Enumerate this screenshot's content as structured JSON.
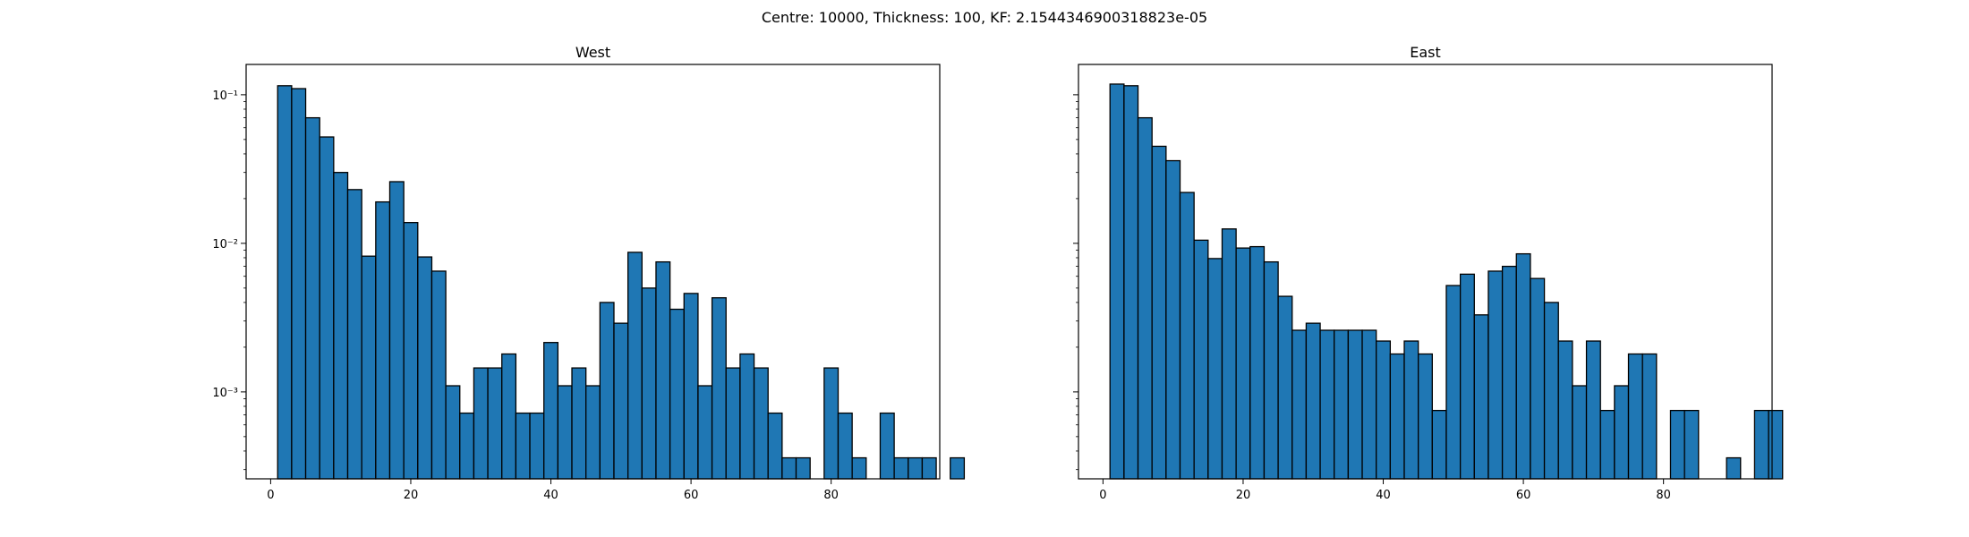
{
  "suptitle": "Centre: 10000, Thickness: 100, KF: 2.1544346900318823e-05",
  "chart_data": [
    {
      "type": "bar",
      "title": "West",
      "xlabel": "",
      "ylabel": "",
      "yscale": "log",
      "xlim": [
        -3.5,
        95.5
      ],
      "ylim": [
        0.00026,
        0.16
      ],
      "xticks": [
        0,
        20,
        40,
        60,
        80
      ],
      "yticks": [
        {
          "value": 0.001,
          "label": "10⁻³"
        },
        {
          "value": 0.01,
          "label": "10⁻²"
        },
        {
          "value": 0.1,
          "label": "10⁻¹"
        }
      ],
      "grid": false,
      "bin_width": 2,
      "bin_start": 1,
      "bar_color": "#1f77b4",
      "edge_color": "#000000",
      "values": [
        0.115,
        0.11,
        0.07,
        0.052,
        0.03,
        0.023,
        0.0082,
        0.019,
        0.026,
        0.0138,
        0.0081,
        0.0065,
        0.0011,
        0.00072,
        0.00145,
        0.00145,
        0.0018,
        0.00072,
        0.00072,
        0.00215,
        0.0011,
        0.00145,
        0.0011,
        0.004,
        0.0029,
        0.0087,
        0.005,
        0.0075,
        0.0036,
        0.0046,
        0.0011,
        0.0043,
        0.00145,
        0.0018,
        0.00145,
        0.00072,
        0.00036,
        0.00036,
        0,
        0.00145,
        0.00072,
        0.00036,
        0,
        0.00072,
        0.00036,
        0.00036,
        0.00036,
        0,
        0.00036
      ]
    },
    {
      "type": "bar",
      "title": "East",
      "xlabel": "",
      "ylabel": "",
      "yscale": "log",
      "xlim": [
        -3.5,
        95.5
      ],
      "ylim": [
        0.00026,
        0.16
      ],
      "xticks": [
        0,
        20,
        40,
        60,
        80
      ],
      "yticks": [
        {
          "value": 0.001,
          "label": ""
        },
        {
          "value": 0.01,
          "label": ""
        },
        {
          "value": 0.1,
          "label": ""
        }
      ],
      "grid": false,
      "bin_width": 2,
      "bin_start": 1,
      "bar_color": "#1f77b4",
      "edge_color": "#000000",
      "values": [
        0.118,
        0.115,
        0.07,
        0.045,
        0.036,
        0.022,
        0.0105,
        0.0079,
        0.0125,
        0.0093,
        0.0095,
        0.0075,
        0.0044,
        0.0026,
        0.0029,
        0.0026,
        0.0026,
        0.0026,
        0.0026,
        0.0022,
        0.0018,
        0.0022,
        0.0018,
        0.00075,
        0.0052,
        0.0062,
        0.0033,
        0.0065,
        0.007,
        0.0085,
        0.0058,
        0.004,
        0.0022,
        0.0011,
        0.0022,
        0.00075,
        0.0011,
        0.0018,
        0.0018,
        0,
        0.00075,
        0.00075,
        0,
        0,
        0.00036,
        0,
        0.00075,
        0.00075
      ]
    }
  ]
}
